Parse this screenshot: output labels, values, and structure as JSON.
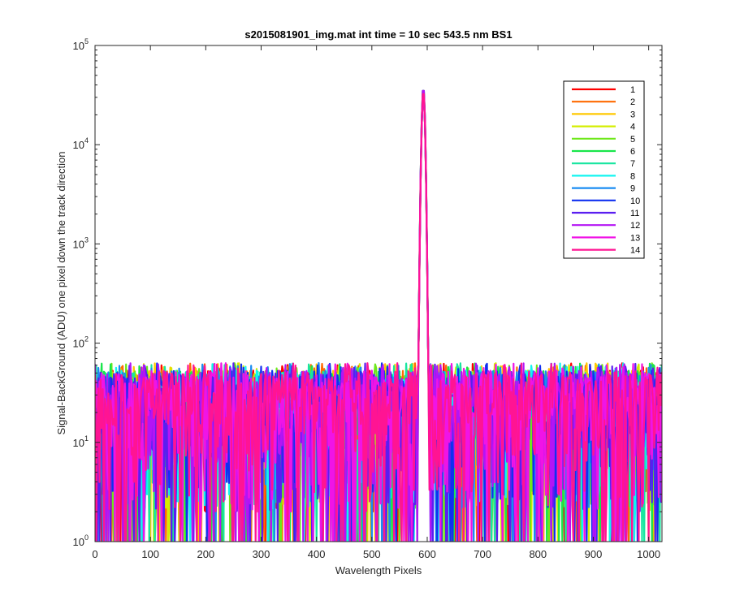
{
  "chart_data": {
    "type": "line",
    "title": "s2015081901_img.mat int time = 10 sec  543.5 nm BS1",
    "xlabel": "Wavelength Pixels",
    "ylabel": "Signal-BackGround (ADU) one pixel down the track direction",
    "xlim": [
      0,
      1024
    ],
    "ylim": [
      1,
      100000
    ],
    "yscale": "log",
    "grid": false,
    "legend_position": "top-right",
    "x_ticks": [
      "0",
      "100",
      "200",
      "300",
      "400",
      "500",
      "600",
      "700",
      "800",
      "900",
      "1000"
    ],
    "y_ticks": [
      {
        "base": "10",
        "exp": "0"
      },
      {
        "base": "10",
        "exp": "1"
      },
      {
        "base": "10",
        "exp": "2"
      },
      {
        "base": "10",
        "exp": "3"
      },
      {
        "base": "10",
        "exp": "4"
      },
      {
        "base": "10",
        "exp": "5"
      }
    ],
    "noise_floor_range": [
      1,
      60
    ],
    "peak": {
      "x": 593,
      "y": 38000
    },
    "series": [
      {
        "name": "1",
        "color": "#ff0000"
      },
      {
        "name": "2",
        "color": "#ff6a00"
      },
      {
        "name": "3",
        "color": "#ffc800"
      },
      {
        "name": "4",
        "color": "#d4ee00"
      },
      {
        "name": "5",
        "color": "#6ee81a"
      },
      {
        "name": "6",
        "color": "#19e64b"
      },
      {
        "name": "7",
        "color": "#19e6a0"
      },
      {
        "name": "8",
        "color": "#12f5f0"
      },
      {
        "name": "9",
        "color": "#1a8cf2"
      },
      {
        "name": "10",
        "color": "#1030f0"
      },
      {
        "name": "11",
        "color": "#5a1ef0"
      },
      {
        "name": "12",
        "color": "#b414f5"
      },
      {
        "name": "13",
        "color": "#f014e6"
      },
      {
        "name": "14",
        "color": "#ff1493"
      }
    ]
  }
}
